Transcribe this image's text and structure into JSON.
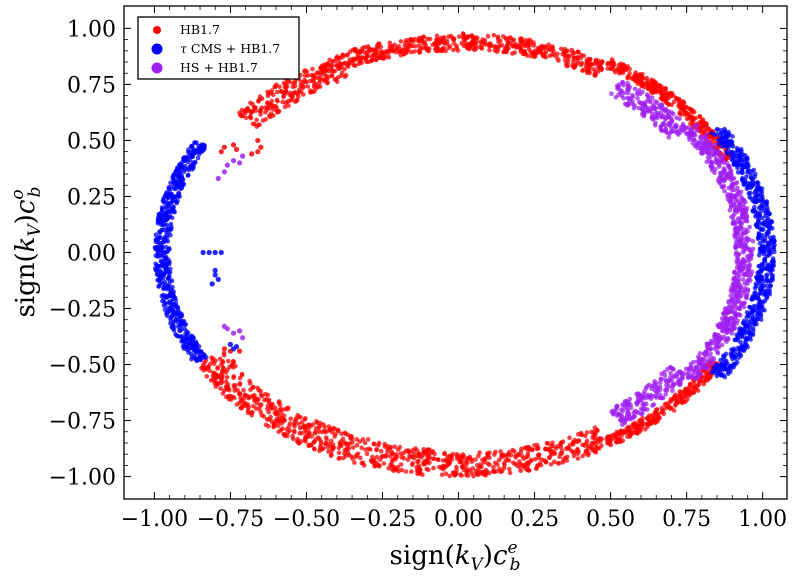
{
  "chart_data": {
    "type": "scatter",
    "title": "",
    "xlabel": "sign(k_V)c_b^e",
    "ylabel": "sign(k_V)c_b^o",
    "xlabel_parts": {
      "main": "sign(",
      "k": "k",
      "kSub": "V",
      "mid": ")",
      "c": "c",
      "sub": "b",
      "sup": "e"
    },
    "ylabel_parts": {
      "main": "sign(",
      "k": "k",
      "kSub": "V",
      "mid": ")",
      "c": "c",
      "sub": "b",
      "sup": "o"
    },
    "xlim": [
      -1.1,
      1.08
    ],
    "ylim": [
      -1.1,
      1.1
    ],
    "xticks": [
      -1.0,
      -0.75,
      -0.5,
      -0.25,
      0.0,
      0.25,
      0.5,
      0.75,
      1.0
    ],
    "yticks": [
      -1.0,
      -0.75,
      -0.5,
      -0.25,
      0.0,
      0.25,
      0.5,
      0.75,
      1.0
    ],
    "xtick_labels": [
      "−1.00",
      "−0.75",
      "−0.50",
      "−0.25",
      "0.00",
      "0.25",
      "0.50",
      "0.75",
      "1.00"
    ],
    "ytick_labels": [
      "−1.00",
      "−0.75",
      "−0.50",
      "−0.25",
      "0.00",
      "0.25",
      "0.50",
      "0.75",
      "1.00"
    ],
    "legend_position": "top-left",
    "series": [
      {
        "name": "HB1.7",
        "label_parts": {
          "text": "HB1.7"
        },
        "color": "#ff0000",
        "regions": [
          {
            "kind": "arc",
            "r_min": 0.955,
            "r_max": 1.0,
            "angle_deg": [
              25,
              60
            ]
          },
          {
            "kind": "arc",
            "r_min": 0.905,
            "r_max": 0.98,
            "angle_deg": [
              60,
              90
            ]
          },
          {
            "kind": "arc",
            "r_min": 0.9,
            "r_max": 0.97,
            "angle_deg": [
              90,
              115
            ]
          },
          {
            "kind": "arc",
            "r_min": 0.86,
            "r_max": 0.96,
            "angle_deg": [
              115,
              140
            ]
          },
          {
            "kind": "arc",
            "r_min": 0.885,
            "r_max": 1.0,
            "angle_deg": [
              -150,
              -95
            ]
          },
          {
            "kind": "arc",
            "r_min": 0.895,
            "r_max": 1.0,
            "angle_deg": [
              -95,
              -60
            ]
          },
          {
            "kind": "arc",
            "r_min": 0.955,
            "r_max": 1.0,
            "angle_deg": [
              -60,
              -30
            ]
          },
          {
            "kind": "points",
            "points": [
              [
                -0.78,
                0.45
              ],
              [
                -0.77,
                0.47
              ],
              [
                -0.74,
                0.48
              ],
              [
                -0.73,
                0.46
              ],
              [
                -0.65,
                0.47
              ],
              [
                -0.66,
                0.45
              ],
              [
                -0.66,
                0.5
              ],
              [
                -0.68,
                0.44
              ],
              [
                -0.77,
                -0.43
              ],
              [
                -0.75,
                -0.44
              ],
              [
                -0.72,
                -0.44
              ],
              [
                -0.8,
                -0.55
              ],
              [
                -0.78,
                -0.58
              ],
              [
                -0.76,
                -0.6
              ],
              [
                -0.72,
                -0.63
              ],
              [
                -0.67,
                -0.66
              ],
              [
                -0.65,
                -0.68
              ],
              [
                -0.58,
                -0.74
              ],
              [
                -0.6,
                -0.72
              ]
            ]
          }
        ]
      },
      {
        "name": "τ CMS + HB1.7",
        "label_parts": {
          "tau": "τ",
          "text": " CMS + HB1.7"
        },
        "color": "#0000ff",
        "regions": [
          {
            "kind": "arc",
            "r_min": 0.985,
            "r_max": 1.04,
            "angle_deg": [
              -33,
              33
            ]
          },
          {
            "kind": "arc",
            "r_min": 0.95,
            "r_max": 1.0,
            "angle_deg": [
              150,
              210
            ]
          },
          {
            "kind": "points",
            "points": [
              [
                -0.8,
                0.0
              ],
              [
                -0.82,
                0.0
              ],
              [
                -0.84,
                0.0
              ],
              [
                -0.78,
                0.0
              ],
              [
                -0.8,
                -0.08
              ],
              [
                -0.8,
                -0.1
              ],
              [
                -0.79,
                -0.12
              ],
              [
                -0.81,
                -0.14
              ],
              [
                -0.75,
                -0.41
              ],
              [
                -0.74,
                -0.43
              ],
              [
                -0.73,
                -0.42
              ]
            ]
          }
        ]
      },
      {
        "name": "HS + HB1.7",
        "label_parts": {
          "text": "HS + HB1.7"
        },
        "color": "#a020f0",
        "regions": [
          {
            "kind": "arc",
            "r_min": 0.91,
            "r_max": 0.97,
            "angle_deg": [
              -36,
              36
            ]
          },
          {
            "kind": "arc",
            "r_min": 0.86,
            "r_max": 0.94,
            "angle_deg": [
              36,
              55
            ]
          },
          {
            "kind": "arc",
            "r_min": 0.86,
            "r_max": 0.94,
            "angle_deg": [
              -55,
              -36
            ]
          },
          {
            "kind": "points",
            "points": [
              [
                -0.76,
                0.39
              ],
              [
                -0.74,
                0.41
              ],
              [
                -0.72,
                0.4
              ],
              [
                -0.71,
                0.43
              ],
              [
                -0.77,
                0.36
              ],
              [
                -0.79,
                0.33
              ],
              [
                -0.76,
                -0.34
              ],
              [
                -0.74,
                -0.36
              ],
              [
                -0.72,
                -0.35
              ],
              [
                -0.71,
                -0.38
              ],
              [
                -0.77,
                -0.33
              ]
            ]
          }
        ]
      }
    ]
  }
}
